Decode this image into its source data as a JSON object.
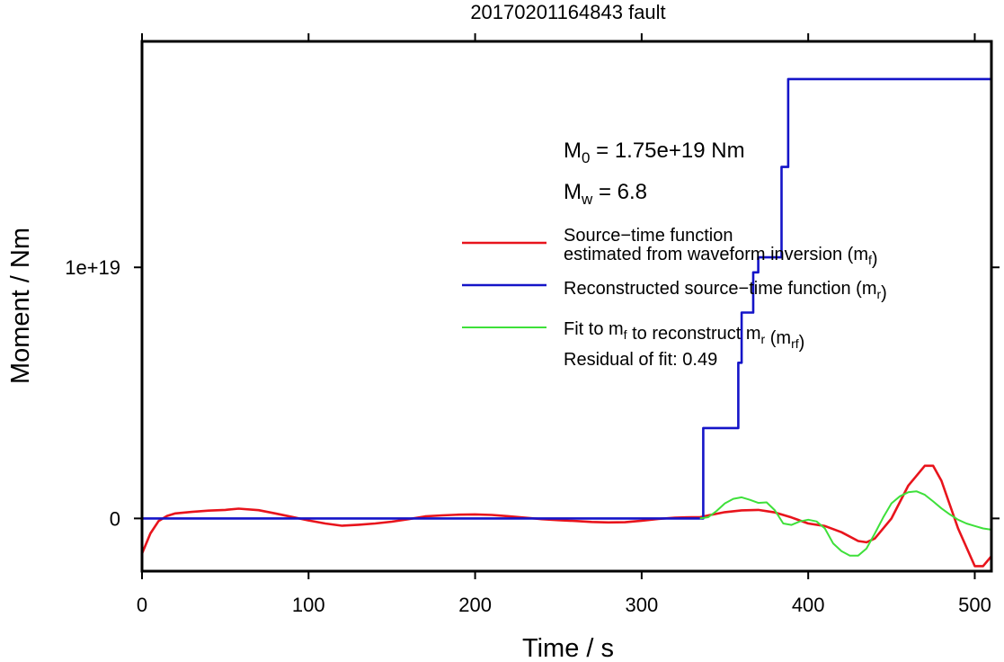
{
  "chart_data": {
    "type": "line",
    "title": "20170201164843 fault",
    "xlabel": "Time / s",
    "ylabel": "Moment / Nm",
    "xlim": [
      0,
      510
    ],
    "ylim": [
      -2.1e+18,
      1.9e+19
    ],
    "x_ticks": [
      0,
      100,
      200,
      300,
      400,
      500
    ],
    "x_tick_labels": [
      "0",
      "100",
      "200",
      "300",
      "400",
      "500"
    ],
    "y_ticks": [
      0,
      1e+19
    ],
    "y_tick_labels": [
      "0",
      "1e+19"
    ],
    "grid": false,
    "legend_placement": "right",
    "annotations": {
      "m0": {
        "prefix": "M",
        "sub": "0",
        "rest": " = 1.75e+19 Nm"
      },
      "mw": {
        "prefix": "M",
        "sub": "w",
        "rest": " = 6.8"
      },
      "residual": "Residual of fit: 0.49"
    },
    "legend": [
      {
        "lines": [
          [
            {
              "t": "Source−time function"
            }
          ],
          [
            {
              "t": "estimated from waveform inversion (m"
            },
            {
              "t": "f",
              "sub": true
            },
            {
              "t": ")"
            }
          ]
        ],
        "color": "#e8141c"
      },
      {
        "lines": [
          [
            {
              "t": "Reconstructed source−time function (m"
            },
            {
              "t": "r",
              "sub": true
            },
            {
              "t": ")"
            }
          ]
        ],
        "color": "#1414c8"
      },
      {
        "lines": [
          [
            {
              "t": "Fit to m"
            },
            {
              "t": "f",
              "sub": true
            },
            {
              "t": " to reconstruct m"
            },
            {
              "t": "r",
              "sub": true
            },
            {
              "t": " (m"
            },
            {
              "t": "rf",
              "sub": true
            },
            {
              "t": ")"
            }
          ]
        ],
        "color": "#3ee03a"
      }
    ],
    "series": [
      {
        "name": "Source−time function estimated from waveform inversion (mf)",
        "color": "#e8141c",
        "x": [
          0,
          5,
          10,
          15,
          20,
          30,
          40,
          50,
          58,
          70,
          80,
          90,
          100,
          110,
          120,
          130,
          140,
          150,
          160,
          170,
          180,
          190,
          200,
          210,
          220,
          230,
          240,
          250,
          260,
          270,
          280,
          290,
          300,
          310,
          320,
          330,
          335,
          340,
          350,
          360,
          370,
          380,
          390,
          400,
          410,
          420,
          430,
          435,
          440,
          450,
          460,
          470,
          475,
          480,
          490,
          500,
          505,
          510
        ],
        "y": [
          -1.4e+18,
          -6e+17,
          -1e+17,
          1e+17,
          2e+17,
          2.6e+17,
          3.1e+17,
          3.4e+17,
          3.9e+17,
          3.3e+17,
          2e+17,
          6e+16,
          -8e+16,
          -2e+17,
          -2.9e+17,
          -2.5e+17,
          -2e+17,
          -1.3e+17,
          -3e+16,
          8e+16,
          1.2e+17,
          1.5e+17,
          1.6e+17,
          1.4e+17,
          9e+16,
          3e+16,
          -3e+16,
          -7e+16,
          -1e+17,
          -1.4e+17,
          -1.6e+17,
          -1.5e+17,
          -9e+16,
          -2e+16,
          3e+16,
          5e+16,
          5e+16,
          1.2e+17,
          2.5e+17,
          3.2e+17,
          3.4e+17,
          2.4e+17,
          4e+16,
          -2e+17,
          -3e+17,
          -5.5e+17,
          -9e+17,
          -9.5e+17,
          -8e+17,
          0,
          1.3e+18,
          2.1e+18,
          2.1e+18,
          1.5e+18,
          -4e+17,
          -1.9e+18,
          -1.9e+18,
          -1.5e+18
        ]
      },
      {
        "name": "Reconstructed source−time function (mr)",
        "color": "#1414c8",
        "x": [
          0,
          335,
          337,
          337,
          358,
          358,
          360,
          360,
          367,
          367,
          370,
          370,
          384,
          384,
          388,
          388,
          510
        ],
        "y": [
          0,
          0,
          0,
          3.6e+18,
          3.6e+18,
          6.2e+18,
          6.2e+18,
          8.2e+18,
          8.2e+18,
          9.8e+18,
          9.8e+18,
          1.04e+19,
          1.04e+19,
          1.4e+19,
          1.4e+19,
          1.75e+19,
          1.75e+19
        ]
      },
      {
        "name": "Fit to mf to reconstruct mr (mrf)",
        "color": "#3ee03a",
        "x": [
          335,
          340,
          345,
          350,
          355,
          360,
          365,
          370,
          375,
          380,
          385,
          390,
          395,
          400,
          405,
          410,
          415,
          420,
          425,
          430,
          435,
          440,
          445,
          450,
          455,
          460,
          465,
          470,
          475,
          480,
          485,
          490,
          495,
          500,
          505,
          510
        ],
        "y": [
          0,
          5e+16,
          3e+17,
          6e+17,
          7.8e+17,
          8.4e+17,
          7.4e+17,
          6.2e+17,
          6.4e+17,
          3.2e+17,
          -2e+17,
          -2.6e+17,
          -1.2e+17,
          -5e+16,
          -1.2e+17,
          -4e+17,
          -1e+18,
          -1.3e+18,
          -1.48e+18,
          -1.48e+18,
          -1.2e+18,
          -6e+17,
          4e+16,
          6e+17,
          8.8e+17,
          1.04e+18,
          1.08e+18,
          9.4e+17,
          6.8e+17,
          4e+17,
          1.6e+17,
          -5e+16,
          -2e+17,
          -3e+17,
          -4e+17,
          -4.5e+17
        ]
      }
    ]
  }
}
